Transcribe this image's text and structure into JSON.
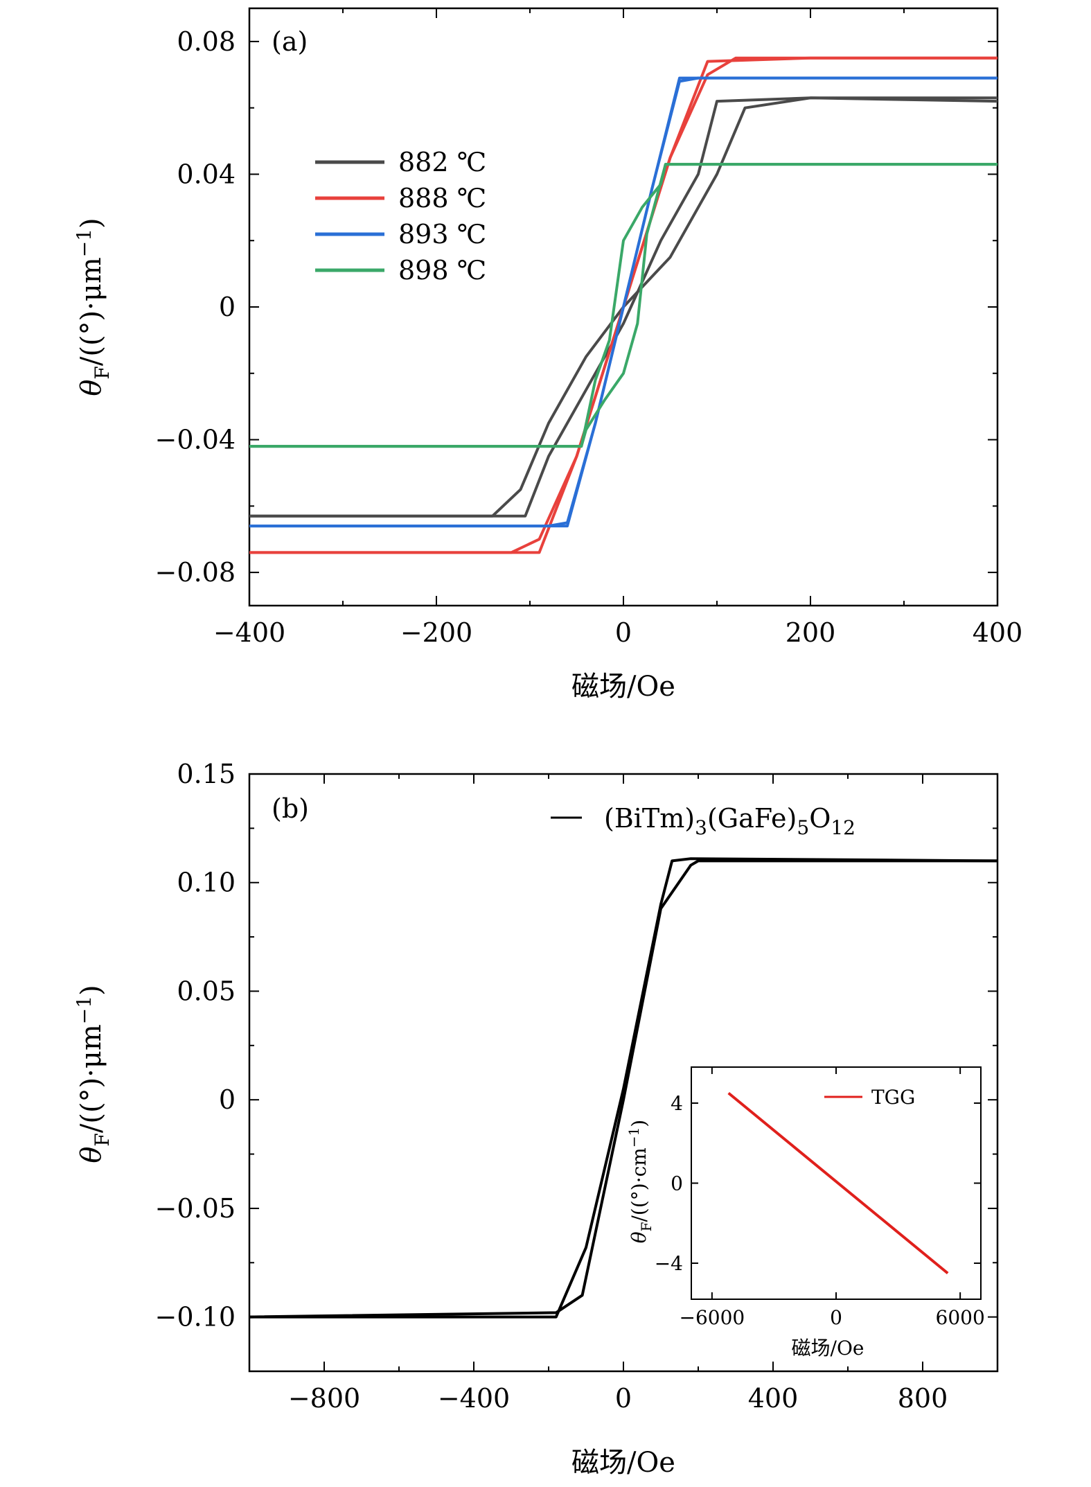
{
  "chart_data": [
    {
      "panel": "(a)",
      "type": "line",
      "xlabel": "磁场/Oe",
      "ylabel": "θ_F/((°)·μm⁻¹)",
      "xlim": [
        -400,
        400
      ],
      "ylim": [
        -0.09,
        0.09
      ],
      "xticks": [
        -400,
        -200,
        0,
        200,
        400
      ],
      "xtick_labels": [
        "−400",
        "−200",
        "0",
        "200",
        "400"
      ],
      "yticks": [
        -0.08,
        -0.04,
        0,
        0.04,
        0.08
      ],
      "ytick_labels": [
        "−0.08",
        "−0.04",
        "0",
        "0.04",
        "0.08"
      ],
      "legend": "upper-left",
      "series": [
        {
          "name": "882 ℃",
          "color": "#4a4a4a",
          "branches": [
            {
              "x": [
                -400,
                -140,
                -110,
                -80,
                -40,
                0,
                50,
                100,
                130,
                200,
                400
              ],
              "y": [
                -0.063,
                -0.063,
                -0.055,
                -0.035,
                -0.015,
                0.0,
                0.015,
                0.04,
                0.06,
                0.063,
                0.063
              ]
            },
            {
              "x": [
                -400,
                -105,
                -80,
                -40,
                0,
                40,
                80,
                100,
                200,
                400
              ],
              "y": [
                -0.063,
                -0.063,
                -0.045,
                -0.025,
                -0.005,
                0.02,
                0.04,
                0.062,
                0.063,
                0.062
              ]
            }
          ]
        },
        {
          "name": "888 ℃",
          "color": "#e8413c",
          "branches": [
            {
              "x": [
                -400,
                -90,
                -50,
                0,
                50,
                90,
                120,
                200,
                400
              ],
              "y": [
                -0.074,
                -0.074,
                -0.045,
                0.0,
                0.045,
                0.07,
                0.075,
                0.075,
                0.075
              ]
            },
            {
              "x": [
                -400,
                -120,
                -90,
                -50,
                0,
                50,
                90,
                200,
                400
              ],
              "y": [
                -0.074,
                -0.074,
                -0.07,
                -0.045,
                0.0,
                0.045,
                0.074,
                0.075,
                0.075
              ]
            }
          ]
        },
        {
          "name": "893 ℃",
          "color": "#2a6fd6",
          "branches": [
            {
              "x": [
                -400,
                -60,
                -30,
                0,
                30,
                60,
                80,
                400
              ],
              "y": [
                -0.066,
                -0.066,
                -0.035,
                0.0,
                0.035,
                0.068,
                0.069,
                0.069
              ]
            },
            {
              "x": [
                -400,
                -80,
                -60,
                -30,
                0,
                30,
                60,
                400
              ],
              "y": [
                -0.066,
                -0.066,
                -0.065,
                -0.035,
                0.0,
                0.035,
                0.069,
                0.069
              ]
            }
          ]
        },
        {
          "name": "898 ℃",
          "color": "#3aa868",
          "branches": [
            {
              "x": [
                -400,
                -45,
                -30,
                -15,
                0,
                10,
                20,
                40,
                45,
                400
              ],
              "y": [
                -0.042,
                -0.042,
                -0.022,
                -0.01,
                0.02,
                0.025,
                0.03,
                0.037,
                0.043,
                0.043
              ]
            },
            {
              "x": [
                -400,
                -45,
                -40,
                -20,
                0,
                15,
                25,
                45,
                400
              ],
              "y": [
                -0.042,
                -0.042,
                -0.037,
                -0.028,
                -0.02,
                -0.005,
                0.022,
                0.043,
                0.043
              ]
            }
          ]
        }
      ]
    },
    {
      "panel": "(b)",
      "type": "line",
      "xlabel": "磁场/Oe",
      "ylabel": "θ_F/((°)·μm⁻¹)",
      "xlim": [
        -1000,
        1000
      ],
      "ylim": [
        -0.125,
        0.15
      ],
      "xticks": [
        -800,
        -400,
        0,
        400,
        800
      ],
      "xtick_labels": [
        "−800",
        "−400",
        "0",
        "400",
        "800"
      ],
      "yticks": [
        -0.1,
        -0.05,
        0,
        0.05,
        0.1,
        0.15
      ],
      "ytick_labels": [
        "−0.10",
        "−0.05",
        "0",
        "0.05",
        "0.10",
        "0.15"
      ],
      "legend": "top-right",
      "series": [
        {
          "name": "(BiTm)3(GaFe)5O12",
          "color": "#000000",
          "branches": [
            {
              "x": [
                -1000,
                -180,
                -100,
                0,
                100,
                130,
                180,
                1000
              ],
              "y": [
                -0.1,
                -0.1,
                -0.068,
                0.005,
                0.09,
                0.11,
                0.111,
                0.11
              ]
            },
            {
              "x": [
                -1000,
                -180,
                -110,
                0,
                100,
                180,
                200,
                1000
              ],
              "y": [
                -0.1,
                -0.098,
                -0.09,
                0.0,
                0.088,
                0.108,
                0.11,
                0.11
              ]
            }
          ]
        }
      ],
      "inset": {
        "type": "line",
        "xlabel": "磁场/Oe",
        "ylabel": "θ_F/((°)·cm⁻¹)",
        "xlim": [
          -7000,
          7000
        ],
        "ylim": [
          -5.8,
          5.8
        ],
        "xticks": [
          -6000,
          0,
          6000
        ],
        "xtick_labels": [
          "−6000",
          "0",
          "6000"
        ],
        "yticks": [
          -4,
          0,
          4
        ],
        "ytick_labels": [
          "−4",
          "0",
          "4"
        ],
        "legend": "top-right",
        "series": [
          {
            "name": "TGG",
            "color": "#e0201c",
            "x": [
              -5200,
              5400
            ],
            "y": [
              4.5,
              -4.5
            ]
          }
        ]
      }
    }
  ],
  "labels": {
    "panel_a": "(a)",
    "panel_b": "(b)",
    "legend_a": [
      "882 ℃",
      "888 ℃",
      "893 ℃",
      "898 ℃"
    ],
    "legend_b": "(BiTm)3(GaFe)5O12",
    "inset_legend": "TGG"
  }
}
